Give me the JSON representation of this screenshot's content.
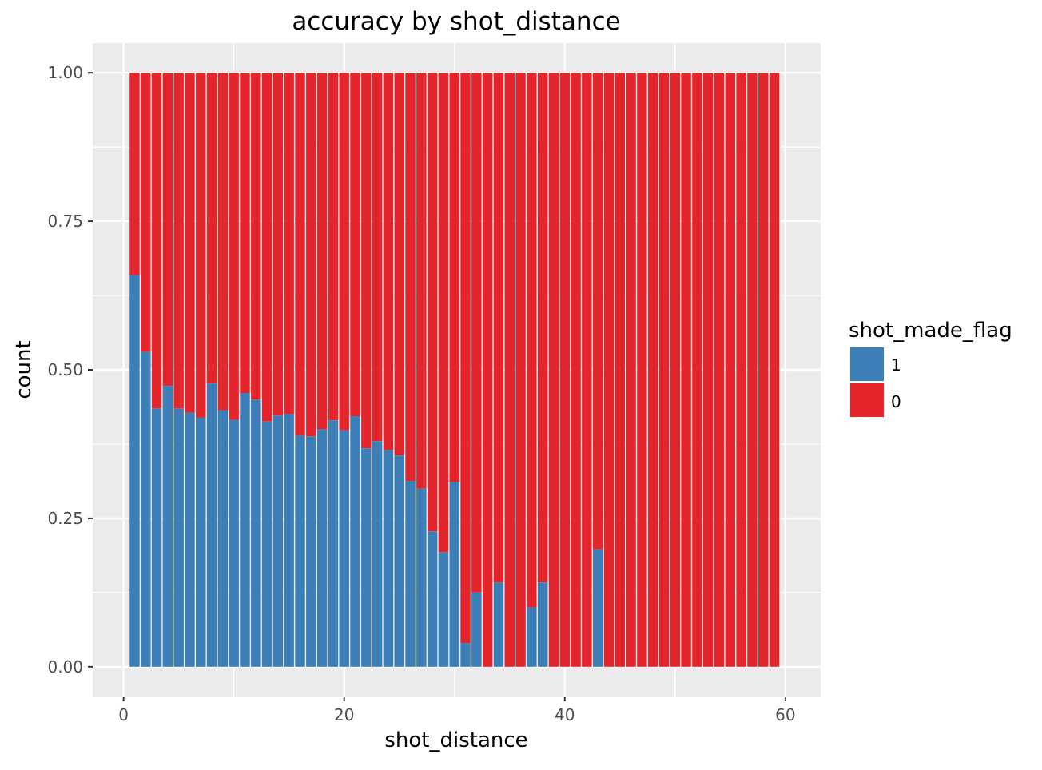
{
  "chart_data": {
    "type": "bar",
    "stacked": "fill",
    "title": "accuracy by shot_distance",
    "xlabel": "shot_distance",
    "ylabel": "count",
    "xlim": [
      -2.8,
      63.2
    ],
    "ylim": [
      -0.05,
      1.05
    ],
    "x_ticks": [
      0,
      20,
      40,
      60
    ],
    "y_ticks": [
      0,
      0.25,
      0.5,
      0.75,
      1
    ],
    "y_tick_labels": [
      "0.00",
      "0.25",
      "0.50",
      "0.75",
      "1.00"
    ],
    "grid": true,
    "legend": {
      "title": "shot_made_flag",
      "position": "right",
      "entries": [
        {
          "label": "1",
          "color": "#3C7FB7"
        },
        {
          "label": "0",
          "color": "#E4252B"
        }
      ]
    },
    "x": [
      1,
      2,
      3,
      4,
      5,
      6,
      7,
      8,
      9,
      10,
      11,
      12,
      13,
      14,
      15,
      16,
      17,
      18,
      19,
      20,
      21,
      22,
      23,
      24,
      25,
      26,
      27,
      28,
      29,
      30,
      31,
      32,
      33,
      34,
      35,
      36,
      37,
      38,
      39,
      40,
      41,
      42,
      43,
      44,
      45,
      46,
      47,
      48,
      49,
      50,
      51,
      52,
      53,
      54,
      55,
      56,
      57,
      58,
      59
    ],
    "series": [
      {
        "name": "1",
        "color": "#3C7FB7",
        "values": [
          0.66,
          0.53,
          0.435,
          0.473,
          0.435,
          0.428,
          0.42,
          0.477,
          0.432,
          0.416,
          0.461,
          0.45,
          0.413,
          0.423,
          0.426,
          0.39,
          0.388,
          0.4,
          0.415,
          0.398,
          0.422,
          0.368,
          0.38,
          0.365,
          0.356,
          0.313,
          0.3,
          0.228,
          0.193,
          0.311,
          0.04,
          0.125,
          0,
          0.142,
          0,
          0,
          0.1,
          0.142,
          0,
          0,
          0,
          0,
          0.198,
          0,
          0,
          0,
          0,
          0,
          0,
          0,
          0,
          0,
          0,
          0,
          0,
          0,
          0,
          0,
          0
        ]
      },
      {
        "name": "0",
        "color": "#E4252B",
        "values_note": "complement to 1.00"
      }
    ]
  }
}
